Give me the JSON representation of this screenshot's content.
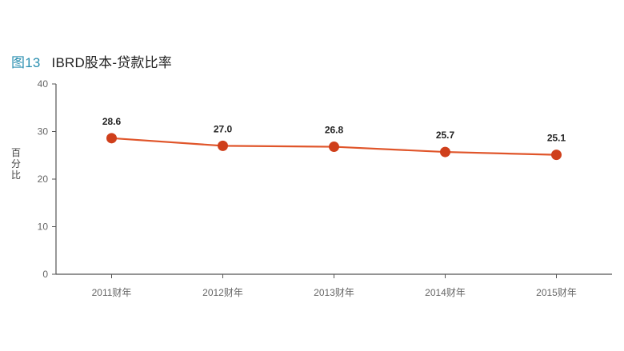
{
  "figure": {
    "number": "图13",
    "title": "IBRD股本-贷款比率"
  },
  "chart_data": {
    "type": "line",
    "title": "IBRD股本-贷款比率",
    "xlabel": "",
    "ylabel": "百分比",
    "categories": [
      "2011财年",
      "2012财年",
      "2013财年",
      "2014财年",
      "2015财年"
    ],
    "series": [
      {
        "name": "",
        "values": [
          28.6,
          27.0,
          26.8,
          25.7,
          25.1
        ],
        "labels": [
          "28.6",
          "27.0",
          "26.8",
          "25.7",
          "25.1"
        ],
        "color": "#e0552a"
      }
    ],
    "ylim": [
      0,
      40
    ],
    "yticks": [
      "0",
      "10",
      "20",
      "30",
      "40"
    ],
    "grid": false,
    "marker_color": "#cf3f1b"
  }
}
